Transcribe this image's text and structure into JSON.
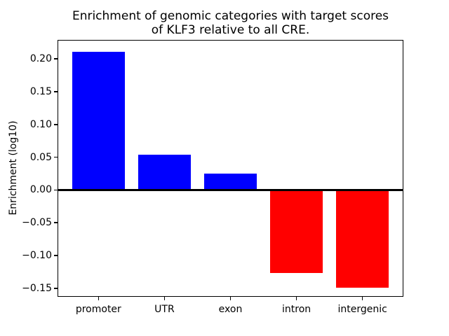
{
  "figure": {
    "title": {
      "line1": "Enrichment of genomic categories with target scores",
      "line2": "of KLF3 relative to all CRE."
    },
    "ylabel": "Enrichment (log10)",
    "background_color": "#ffffff",
    "axis_color": "#000000"
  },
  "chart_data": {
    "type": "bar",
    "title": "Enrichment of genomic categories with target scores of KLF3 relative to all CRE.",
    "xlabel": "",
    "ylabel": "Enrichment (log10)",
    "categories": [
      "promoter",
      "UTR",
      "exon",
      "intron",
      "intergenic"
    ],
    "values": [
      0.211,
      0.054,
      0.025,
      -0.127,
      -0.149
    ],
    "bar_colors": [
      "#0000ff",
      "#0000ff",
      "#0000ff",
      "#ff0000",
      "#ff0000"
    ],
    "positive_color": "#0000ff",
    "negative_color": "#ff0000",
    "bar_width_fraction": 0.8,
    "yticks": [
      0.2,
      0.15,
      0.1,
      0.05,
      0.0,
      -0.05,
      -0.1,
      -0.15
    ],
    "ytick_labels": [
      "0.20",
      "0.15",
      "0.10",
      "0.05",
      "0.00",
      "−0.05",
      "−0.10",
      "−0.15"
    ],
    "ylim": [
      -0.163,
      0.229
    ],
    "xlim": [
      -0.62,
      4.62
    ],
    "grid": false,
    "legend": null,
    "zero_line": {
      "show": true,
      "color": "#000000"
    }
  }
}
